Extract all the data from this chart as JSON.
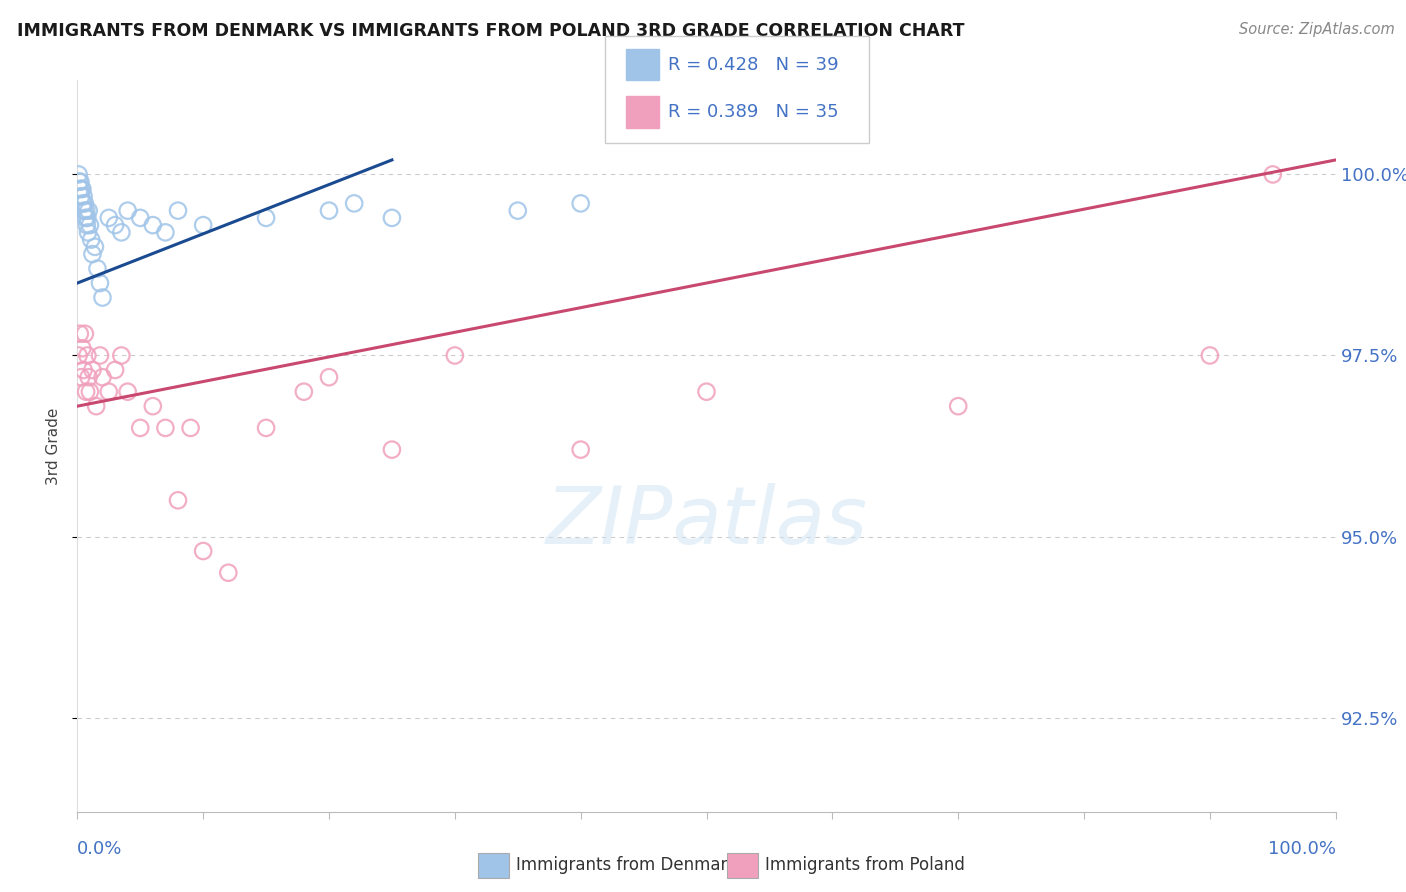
{
  "title": "IMMIGRANTS FROM DENMARK VS IMMIGRANTS FROM POLAND 3RD GRADE CORRELATION CHART",
  "source": "Source: ZipAtlas.com",
  "ylabel": "3rd Grade",
  "xlim": [
    0.0,
    100.0
  ],
  "ylim": [
    91.2,
    101.3
  ],
  "yticks": [
    92.5,
    95.0,
    97.5,
    100.0
  ],
  "ytick_labels": [
    "92.5%",
    "95.0%",
    "97.5%",
    "100.0%"
  ],
  "legend_blue_r": "R = 0.428",
  "legend_blue_n": "N = 39",
  "legend_pink_r": "R = 0.389",
  "legend_pink_n": "N = 35",
  "blue_color": "#A0C4E8",
  "pink_color": "#F0A0BC",
  "blue_line_color": "#1A4A90",
  "pink_line_color": "#C84870",
  "legend_text_color": "#4472C4",
  "grid_color": "#CCCCCC",
  "blue_scatter_x": [
    0.1,
    0.15,
    0.2,
    0.25,
    0.3,
    0.35,
    0.4,
    0.45,
    0.5,
    0.55,
    0.6,
    0.65,
    0.7,
    0.75,
    0.8,
    0.85,
    0.9,
    1.0,
    1.1,
    1.2,
    1.4,
    1.6,
    1.8,
    2.0,
    2.5,
    3.0,
    3.5,
    4.0,
    5.0,
    6.0,
    7.0,
    8.0,
    10.0,
    15.0,
    20.0,
    22.0,
    25.0,
    35.0,
    40.0
  ],
  "blue_scatter_y": [
    100.0,
    99.9,
    99.8,
    99.9,
    99.7,
    99.8,
    99.8,
    99.6,
    99.7,
    99.5,
    99.6,
    99.4,
    99.5,
    99.3,
    99.4,
    99.2,
    99.5,
    99.3,
    99.1,
    98.9,
    99.0,
    98.7,
    98.5,
    98.3,
    99.4,
    99.3,
    99.2,
    99.5,
    99.4,
    99.3,
    99.2,
    99.5,
    99.3,
    99.4,
    99.5,
    99.6,
    99.4,
    99.5,
    99.6
  ],
  "pink_scatter_x": [
    0.1,
    0.2,
    0.3,
    0.4,
    0.5,
    0.6,
    0.7,
    0.8,
    0.9,
    1.0,
    1.2,
    1.5,
    1.8,
    2.0,
    2.5,
    3.0,
    3.5,
    4.0,
    5.0,
    6.0,
    7.0,
    8.0,
    9.0,
    10.0,
    12.0,
    15.0,
    18.0,
    20.0,
    25.0,
    30.0,
    40.0,
    50.0,
    70.0,
    90.0,
    95.0
  ],
  "pink_scatter_y": [
    97.5,
    97.8,
    97.2,
    97.6,
    97.3,
    97.8,
    97.0,
    97.5,
    97.2,
    97.0,
    97.3,
    96.8,
    97.5,
    97.2,
    97.0,
    97.3,
    97.5,
    97.0,
    96.5,
    96.8,
    96.5,
    95.5,
    96.5,
    94.8,
    94.5,
    96.5,
    97.0,
    97.2,
    96.2,
    97.5,
    96.2,
    97.0,
    96.8,
    97.5,
    100.0
  ],
  "blue_trend": [
    0.0,
    98.5,
    25.0,
    100.2
  ],
  "pink_trend": [
    0.0,
    96.8,
    100.0,
    100.2
  ]
}
